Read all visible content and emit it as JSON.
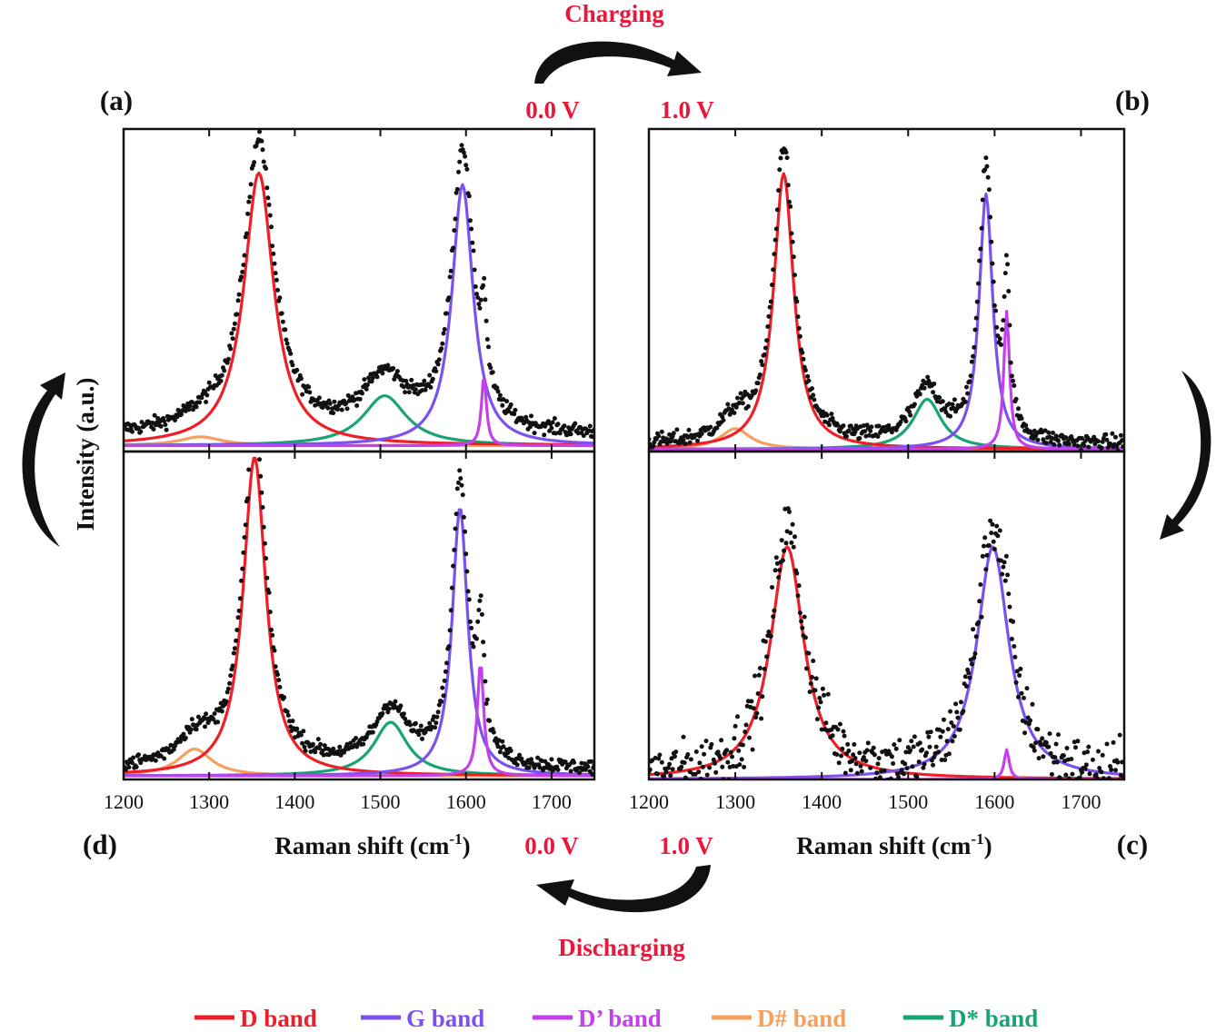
{
  "figure": {
    "top_state": "Charging",
    "bottom_state": "Discharging",
    "voltage_left_top": "0.0 V",
    "voltage_right_top": "1.0 V",
    "voltage_left_bottom": "0.0 V",
    "voltage_right_bottom": "1.0 V",
    "panel_a": "(a)",
    "panel_b": "(b)",
    "panel_c": "(c)",
    "panel_d": "(d)",
    "ylabel": "Intensity (a.u.)",
    "xlabel_left": "Raman shift (cm",
    "xlabel_right": "Raman shift (cm",
    "xlabel_sup": "-1",
    "xlabel_close": ")"
  },
  "colors": {
    "D band": "#ef1f27",
    "G band": "#7b52ee",
    "D' band": "#c340ea",
    "D# band": "#f5a05f",
    "D* band": "#1aa374",
    "data": "#111111",
    "accent": "#e8173c"
  },
  "legend": [
    {
      "label": "D band",
      "color": "#ef1f27"
    },
    {
      "label": "G band",
      "color": "#7b52ee"
    },
    {
      "label": "D’ band",
      "color": "#c340ea"
    },
    {
      "label": "D# band",
      "color": "#f5a05f"
    },
    {
      "label": "D* band",
      "color": "#1aa374"
    }
  ],
  "chart_data": [
    {
      "panel": "(a)",
      "type": "line",
      "voltage": "0.0 V",
      "xlabel": "",
      "ylabel": "Intensity (a.u.)",
      "xlim": [
        1200,
        1750
      ],
      "ylim": [
        0,
        1.1
      ],
      "x_ticks": [
        1200,
        1300,
        1400,
        1500,
        1600,
        1700
      ],
      "x_ticklabels_shown": false,
      "baseline": 0.05,
      "noise": 0.018,
      "bands": [
        {
          "name": "D band",
          "center": 1358,
          "height": 0.93,
          "width": 42
        },
        {
          "name": "G band",
          "center": 1596,
          "height": 0.89,
          "width": 30
        },
        {
          "name": "D’ band",
          "center": 1621,
          "height": 0.24,
          "width": 7
        },
        {
          "name": "D# band",
          "center": 1290,
          "height": 0.03,
          "width": 60
        },
        {
          "name": "D* band",
          "center": 1505,
          "height": 0.17,
          "width": 62
        }
      ]
    },
    {
      "panel": "(b)",
      "type": "line",
      "voltage": "1.0 V",
      "xlabel": "",
      "ylabel": "",
      "xlim": [
        1200,
        1750
      ],
      "ylim": [
        0,
        1.1
      ],
      "x_ticks": [
        1200,
        1300,
        1400,
        1500,
        1600,
        1700
      ],
      "x_ticklabels_shown": false,
      "baseline": 0.02,
      "noise": 0.02,
      "bands": [
        {
          "name": "D band",
          "center": 1356,
          "height": 0.94,
          "width": 28
        },
        {
          "name": "G band",
          "center": 1590,
          "height": 0.87,
          "width": 19
        },
        {
          "name": "D’ band",
          "center": 1614,
          "height": 0.47,
          "width": 8
        },
        {
          "name": "D# band",
          "center": 1300,
          "height": 0.07,
          "width": 42
        },
        {
          "name": "D* band",
          "center": 1522,
          "height": 0.17,
          "width": 40
        }
      ]
    },
    {
      "panel": "(c)",
      "type": "line",
      "voltage": "1.0 V",
      "xlabel": "Raman shift (cm-1)",
      "ylabel": "",
      "xlim": [
        1200,
        1750
      ],
      "ylim": [
        0,
        1.1
      ],
      "x_ticks": [
        1200,
        1300,
        1400,
        1500,
        1600,
        1700
      ],
      "x_ticklabels_shown": true,
      "baseline": 0.0,
      "noise": 0.07,
      "bands": [
        {
          "name": "D band",
          "center": 1360,
          "height": 0.78,
          "width": 47
        },
        {
          "name": "G band",
          "center": 1598,
          "height": 0.78,
          "width": 45
        },
        {
          "name": "D’ band",
          "center": 1614,
          "height": 0.1,
          "width": 7
        }
      ]
    },
    {
      "panel": "(d)",
      "type": "line",
      "voltage": "0.0 V",
      "xlabel": "Raman shift (cm-1)",
      "ylabel": "Intensity (a.u.)",
      "xlim": [
        1200,
        1750
      ],
      "ylim": [
        0,
        1.1
      ],
      "x_ticks": [
        1200,
        1300,
        1400,
        1500,
        1600,
        1700
      ],
      "x_ticklabels_shown": true,
      "baseline": 0.03,
      "noise": 0.018,
      "bands": [
        {
          "name": "D band",
          "center": 1353,
          "height": 1.07,
          "width": 32
        },
        {
          "name": "G band",
          "center": 1593,
          "height": 0.9,
          "width": 22
        },
        {
          "name": "D’ band",
          "center": 1617,
          "height": 0.38,
          "width": 9
        },
        {
          "name": "D# band",
          "center": 1283,
          "height": 0.09,
          "width": 48
        },
        {
          "name": "D* band",
          "center": 1512,
          "height": 0.18,
          "width": 48
        }
      ]
    }
  ]
}
